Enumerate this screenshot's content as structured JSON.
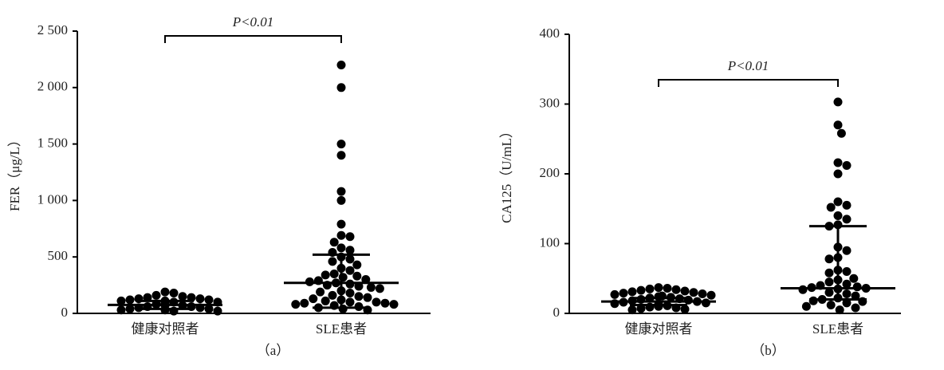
{
  "chart_data": [
    {
      "type": "dot",
      "y_label": "FER（μg/L）",
      "panel_label": "（a）",
      "annotation": "P<0.01",
      "categories": [
        "健康对照者",
        "SLE患者"
      ],
      "color": "#000000",
      "values": [
        [
          190,
          180,
          160,
          150,
          140,
          140,
          130,
          130,
          120,
          120,
          110,
          110,
          100,
          100,
          90,
          90,
          80,
          80,
          70,
          70,
          60,
          60,
          50,
          50,
          40,
          40,
          30,
          30,
          20,
          20
        ],
        [
          2200,
          2000,
          1500,
          1400,
          1080,
          1000,
          790,
          690,
          680,
          630,
          580,
          560,
          540,
          500,
          480,
          460,
          430,
          400,
          380,
          350,
          340,
          330,
          320,
          300,
          290,
          280,
          270,
          260,
          250,
          240,
          230,
          220,
          200,
          190,
          180,
          160,
          150,
          140,
          130,
          120,
          110,
          100,
          100,
          90,
          90,
          80,
          80,
          70,
          60,
          50,
          40,
          30
        ]
      ],
      "median": [
        75,
        270
      ],
      "q1": [
        40,
        50
      ],
      "q3": [
        110,
        520
      ],
      "ylim": [
        0,
        2500
      ],
      "yticks": [
        0,
        500,
        {
          "value": 1000,
          "label": "1 000"
        },
        {
          "value": 1500,
          "label": "1 500"
        },
        {
          "value": 2000,
          "label": "2 000"
        },
        {
          "value": 2500,
          "label": "2 500"
        }
      ]
    },
    {
      "type": "dot",
      "y_label": "CA125（U/mL）",
      "panel_label": "（b）",
      "annotation": "P<0.01",
      "categories": [
        "健康对照者",
        "SLE患者"
      ],
      "color": "#000000",
      "values": [
        [
          37,
          36,
          35,
          34,
          33,
          32,
          31,
          30,
          29,
          28,
          27,
          26,
          25,
          24,
          23,
          22,
          21,
          20,
          19,
          18,
          17,
          16,
          15,
          14,
          13,
          12,
          11,
          10,
          9,
          8,
          7,
          6,
          5
        ],
        [
          303,
          270,
          258,
          216,
          212,
          200,
          160,
          155,
          152,
          140,
          135,
          127,
          125,
          95,
          90,
          80,
          78,
          62,
          60,
          58,
          50,
          48,
          45,
          42,
          40,
          38,
          37,
          36,
          35,
          34,
          30,
          28,
          25,
          22,
          20,
          18,
          17,
          15,
          12,
          10,
          8,
          5
        ]
      ],
      "median": [
        17,
        36
      ],
      "q1": [
        12,
        20
      ],
      "q3": [
        22,
        125
      ],
      "ylim": [
        0,
        400
      ],
      "yticks": [
        0,
        100,
        200,
        300,
        400
      ]
    }
  ]
}
